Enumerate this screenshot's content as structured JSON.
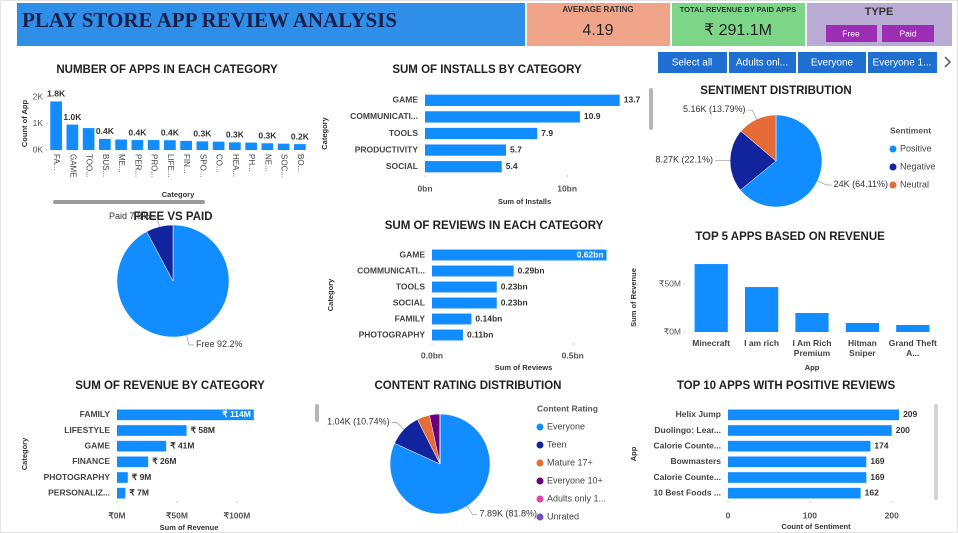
{
  "header": {
    "title": "PLAY STORE APP REVIEW ANALYSIS",
    "kpis": [
      {
        "label": "AVERAGE RATING",
        "value": 4.19
      },
      {
        "label": "TOTAL REVENUE BY PAID APPS",
        "value": "₹ 291.1M"
      }
    ],
    "type_slicer": {
      "title": "TYPE",
      "options": [
        "Free",
        "Paid"
      ]
    },
    "rating_slicer": {
      "options": [
        "Select all",
        "Adults onl...",
        "Everyone",
        "Everyone 1..."
      ]
    }
  },
  "chart_data": [
    {
      "type": "bar",
      "title": "NUMBER OF APPS IN EACH CATEGORY",
      "x_label": "Category",
      "y_label": "Count of App",
      "categories": [
        "FA...",
        "GAME",
        "TOO...",
        "BUS...",
        "ME...",
        "PER...",
        "PRO...",
        "LIFE...",
        "FIN...",
        "SPO...",
        "CO...",
        "HEA...",
        "PH...",
        "NE...",
        "SOC...",
        "BO..."
      ],
      "values": [
        1832,
        959,
        827,
        420,
        395,
        376,
        374,
        369,
        345,
        325,
        315,
        288,
        281,
        254,
        239,
        222
      ],
      "value_labels": [
        "1.8K",
        "1.0K",
        null,
        "0.4K",
        null,
        "0.4K",
        null,
        "0.4K",
        null,
        "0.3K",
        null,
        "0.3K",
        null,
        "0.3K",
        null,
        "0.2K"
      ],
      "color": "#118DFF",
      "ylim": [
        0,
        2000
      ],
      "yticks": [
        {
          "value": 0,
          "label": "0K"
        },
        {
          "value": 1000,
          "label": "1K"
        },
        {
          "value": 2000,
          "label": "2K"
        }
      ]
    },
    {
      "type": "barh",
      "title": "SUM OF INSTALLS BY CATEGORY",
      "x_label": "Sum of Installs",
      "y_label": "Category",
      "categories": [
        "GAME",
        "COMMUNICATI...",
        "TOOLS",
        "PRODUCTIVITY",
        "SOCIAL"
      ],
      "values": [
        13.7,
        10.9,
        7.9,
        5.7,
        5.4
      ],
      "color": "#118DFF",
      "xlim": [
        0,
        14
      ],
      "xticks": [
        {
          "value": 0,
          "label": "0bn"
        },
        {
          "value": 10,
          "label": "10bn"
        }
      ]
    },
    {
      "type": "pie",
      "title": "SENTIMENT DISTRIBUTION",
      "legend_title": "Sentiment",
      "categories": [
        "Positive",
        "Negative",
        "Neutral"
      ],
      "values": [
        23998,
        8271,
        5163
      ],
      "value_labels": [
        "24K (64.11%)",
        "8.27K (22.1%)",
        "5.16K (13.79%)"
      ],
      "colors": [
        "#118DFF",
        "#12239E",
        "#E66C37"
      ]
    },
    {
      "type": "pie",
      "title": "FREE VS PAID",
      "categories": [
        "Free",
        "Paid"
      ],
      "values": [
        92.2,
        7.8
      ],
      "value_labels": [
        "92.2%",
        "7.8%"
      ],
      "colors": [
        "#118DFF",
        "#12239E"
      ]
    },
    {
      "type": "barh",
      "title": "SUM OF REVIEWS IN EACH CATEGORY",
      "x_label": "Sum of Reviews",
      "y_label": "Category",
      "categories": [
        "GAME",
        "COMMUNICATI...",
        "TOOLS",
        "SOCIAL",
        "FAMILY",
        "PHOTOGRAPHY"
      ],
      "values": [
        0.62,
        0.29,
        0.23,
        0.23,
        0.14,
        0.11
      ],
      "value_labels": [
        "0.62bn",
        "0.29bn",
        "0.23bn",
        "0.23bn",
        "0.14bn",
        "0.11bn"
      ],
      "color": "#118DFF",
      "xlim": [
        0,
        0.65
      ],
      "xticks": [
        {
          "value": 0,
          "label": "0.0bn"
        },
        {
          "value": 0.5,
          "label": "0.5bn"
        }
      ]
    },
    {
      "type": "bar",
      "title": "TOP 5 APPS BASED ON REVENUE",
      "x_label": "App",
      "y_label": "Sum of Revenue",
      "categories": [
        "Minecraft",
        "I am rich",
        "I Am Rich Premium",
        "Hitman Sniper",
        "Grand Theft A..."
      ],
      "values": [
        70.9,
        46.9,
        19.8,
        9.4,
        7.3
      ],
      "color": "#118DFF",
      "ylim": [
        0,
        72
      ],
      "yticks": [
        {
          "value": 0,
          "label": "₹0M"
        },
        {
          "value": 50,
          "label": "₹50M"
        }
      ]
    },
    {
      "type": "barh",
      "title": "SUM OF REVENUE BY CATEGORY",
      "x_label": "Sum of Revenue",
      "y_label": "Category",
      "categories": [
        "FAMILY",
        "LIFESTYLE",
        "GAME",
        "FINANCE",
        "PHOTOGRAPHY",
        "PERSONALIZ..."
      ],
      "values": [
        114,
        58,
        41,
        26,
        9,
        7
      ],
      "value_labels": [
        "₹ 114M",
        "₹ 58M",
        "₹ 41M",
        "₹ 26M",
        "₹ 9M",
        "₹ 7M"
      ],
      "color": "#118DFF",
      "xlim": [
        0,
        120
      ],
      "xticks": [
        {
          "value": 0,
          "label": "₹0M"
        },
        {
          "value": 50,
          "label": "₹50M"
        },
        {
          "value": 100,
          "label": "₹100M"
        }
      ]
    },
    {
      "type": "pie",
      "title": "CONTENT RATING DISTRIBUTION",
      "legend_title": "Content Rating",
      "categories": [
        "Everyone",
        "Teen",
        "Mature 17+",
        "Everyone 10+",
        "Adults only 1...",
        "Unrated"
      ],
      "values": [
        7893,
        1036,
        393,
        322,
        3,
        2
      ],
      "value_labels": [
        "7.89K (81.8%)",
        "1.04K (10.74%)",
        null,
        null,
        null,
        null
      ],
      "colors": [
        "#118DFF",
        "#12239E",
        "#E66C37",
        "#6B007B",
        "#E044A7",
        "#744EC2"
      ]
    },
    {
      "type": "barh",
      "title": "TOP 10 APPS WITH POSITIVE REVIEWS",
      "x_label": "Count of Sentiment",
      "y_label": "App",
      "categories": [
        "Helix Jump",
        "Duolingo: Lear...",
        "Calorie Counte...",
        "Bowmasters",
        "Calorie Counte...",
        "10 Best Foods ..."
      ],
      "values": [
        209,
        200,
        174,
        169,
        169,
        162
      ],
      "color": "#118DFF",
      "xlim": [
        0,
        215
      ],
      "xticks": [
        0,
        100,
        200
      ]
    }
  ]
}
